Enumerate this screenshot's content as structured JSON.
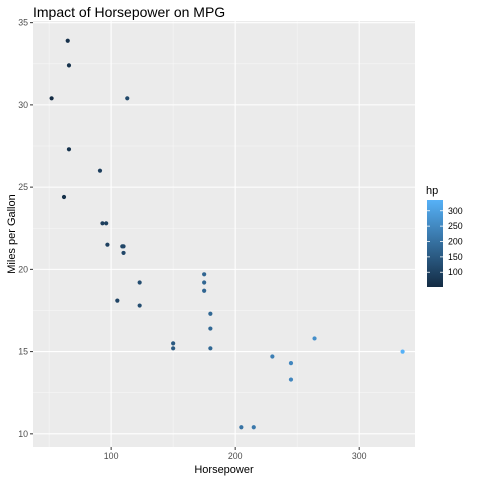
{
  "chart_data": {
    "type": "scatter",
    "title": "Impact of Horsepower on MPG",
    "xlabel": "Horsepower",
    "ylabel": "Miles per Gallon",
    "xlim": [
      37,
      345
    ],
    "ylim": [
      9.2,
      35.1
    ],
    "x_ticks": [
      100,
      200,
      300
    ],
    "y_ticks": [
      10,
      15,
      20,
      25,
      30,
      35
    ],
    "grid": true,
    "legend": {
      "title": "hp",
      "position": "right",
      "ticks": [
        100,
        150,
        200,
        250,
        300
      ],
      "range": [
        52,
        335
      ],
      "color_low": "#132b43",
      "color_high": "#56b1f7"
    },
    "points": [
      {
        "x": 110,
        "y": 21.0
      },
      {
        "x": 110,
        "y": 21.4
      },
      {
        "x": 93,
        "y": 22.8
      },
      {
        "x": 96,
        "y": 22.8
      },
      {
        "x": 97,
        "y": 21.5
      },
      {
        "x": 109,
        "y": 21.4
      },
      {
        "x": 105,
        "y": 18.1
      },
      {
        "x": 123,
        "y": 19.2
      },
      {
        "x": 123,
        "y": 17.8
      },
      {
        "x": 175,
        "y": 19.7
      },
      {
        "x": 175,
        "y": 19.2
      },
      {
        "x": 175,
        "y": 18.7
      },
      {
        "x": 180,
        "y": 17.3
      },
      {
        "x": 180,
        "y": 16.4
      },
      {
        "x": 180,
        "y": 15.2
      },
      {
        "x": 150,
        "y": 15.5
      },
      {
        "x": 150,
        "y": 15.2
      },
      {
        "x": 230,
        "y": 14.7
      },
      {
        "x": 245,
        "y": 14.3
      },
      {
        "x": 245,
        "y": 13.3
      },
      {
        "x": 264,
        "y": 15.8
      },
      {
        "x": 335,
        "y": 15.0
      },
      {
        "x": 205,
        "y": 10.4
      },
      {
        "x": 215,
        "y": 10.4
      },
      {
        "x": 66,
        "y": 32.4
      },
      {
        "x": 52,
        "y": 30.4
      },
      {
        "x": 65,
        "y": 33.9
      },
      {
        "x": 113,
        "y": 30.4
      },
      {
        "x": 66,
        "y": 27.3
      },
      {
        "x": 91,
        "y": 26.0
      },
      {
        "x": 62,
        "y": 24.4
      }
    ]
  }
}
